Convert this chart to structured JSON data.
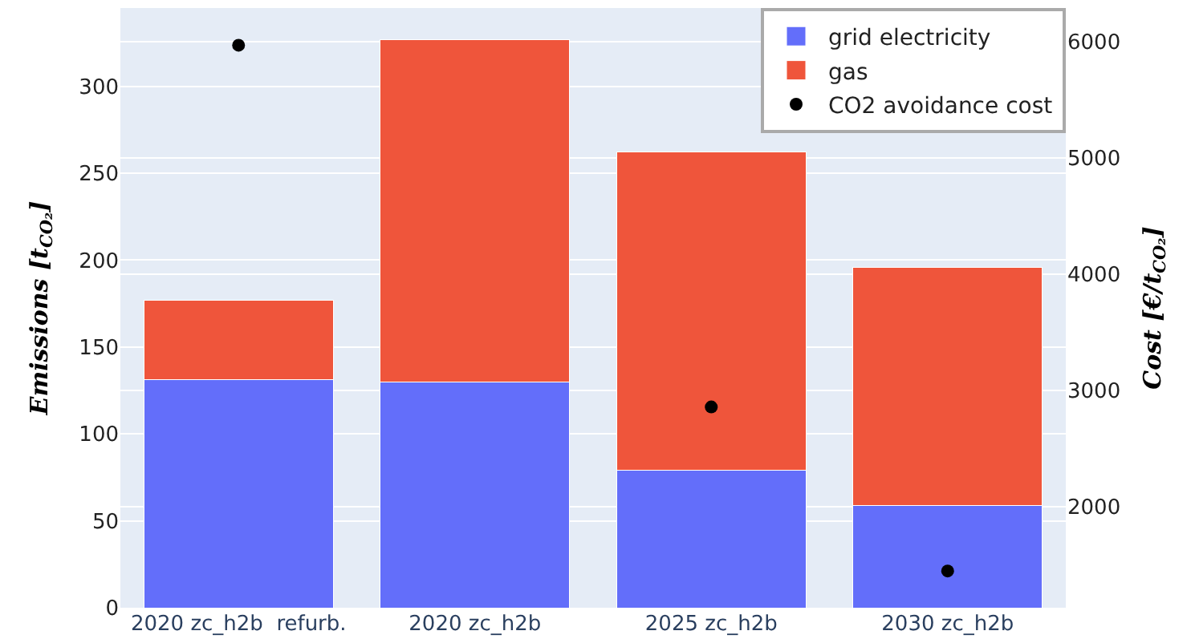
{
  "chart_data": {
    "type": "bar",
    "stacked": true,
    "categories": [
      "2020 zc_h2b  refurb.",
      "2020 zc_h2b",
      "2025 zc_h2b",
      "2030 zc_h2b"
    ],
    "series": [
      {
        "name": "grid electricity",
        "color": "#636efa",
        "values": [
          131,
          130,
          79,
          59
        ]
      },
      {
        "name": "gas",
        "color": "#ef553b",
        "values": [
          46,
          197,
          183,
          137
        ]
      },
      {
        "name": "CO2 avoidance cost",
        "type": "scatter",
        "axis": "y2",
        "color": "#000000",
        "values": [
          5970,
          null,
          2860,
          1450
        ]
      }
    ],
    "ylabel": "Emissions [t$_{CO₂}$]",
    "y2label": "Cost [€/t$_{CO₂}$]",
    "ylim": [
      0,
      345
    ],
    "yticks": [
      0,
      50,
      100,
      150,
      200,
      250,
      300
    ],
    "y2lim": [
      1134,
      6290
    ],
    "y2ticks": [
      2000,
      3000,
      4000,
      5000,
      6000
    ],
    "grid": true,
    "legend": "top right",
    "marker": "circle"
  }
}
